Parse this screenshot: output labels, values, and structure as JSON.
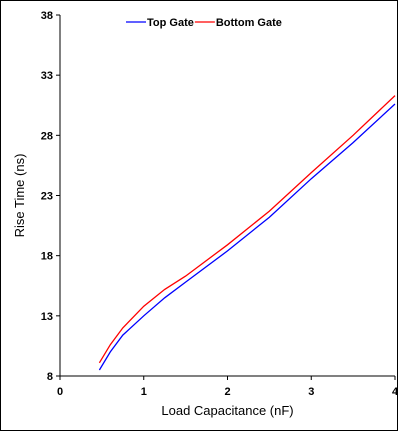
{
  "chart_data": {
    "type": "line",
    "title": "",
    "xlabel": "Load Capacitance (nF)",
    "ylabel": "Rise Time (ns)",
    "xlim": [
      0,
      4
    ],
    "ylim": [
      8,
      38
    ],
    "xticks": [
      0,
      1,
      2,
      3,
      4
    ],
    "yticks": [
      8,
      13,
      18,
      23,
      28,
      33,
      38
    ],
    "grid": false,
    "legend_position": "top",
    "series": [
      {
        "name": "Top Gate",
        "color": "#0000ff",
        "points": [
          [
            0.47,
            8.5
          ],
          [
            0.6,
            10.0
          ],
          [
            0.75,
            11.4
          ],
          [
            1.0,
            13.0
          ],
          [
            1.25,
            14.5
          ],
          [
            1.5,
            15.8
          ],
          [
            2.0,
            18.4
          ],
          [
            2.5,
            21.2
          ],
          [
            3.0,
            24.4
          ],
          [
            3.5,
            27.4
          ],
          [
            4.0,
            30.6
          ]
        ]
      },
      {
        "name": "Bottom Gate",
        "color": "#ff0000",
        "points": [
          [
            0.47,
            9.1
          ],
          [
            0.6,
            10.6
          ],
          [
            0.75,
            12.0
          ],
          [
            1.0,
            13.8
          ],
          [
            1.25,
            15.2
          ],
          [
            1.5,
            16.3
          ],
          [
            2.0,
            18.9
          ],
          [
            2.5,
            21.7
          ],
          [
            3.0,
            24.9
          ],
          [
            3.5,
            28.0
          ],
          [
            4.0,
            31.3
          ]
        ]
      }
    ]
  }
}
